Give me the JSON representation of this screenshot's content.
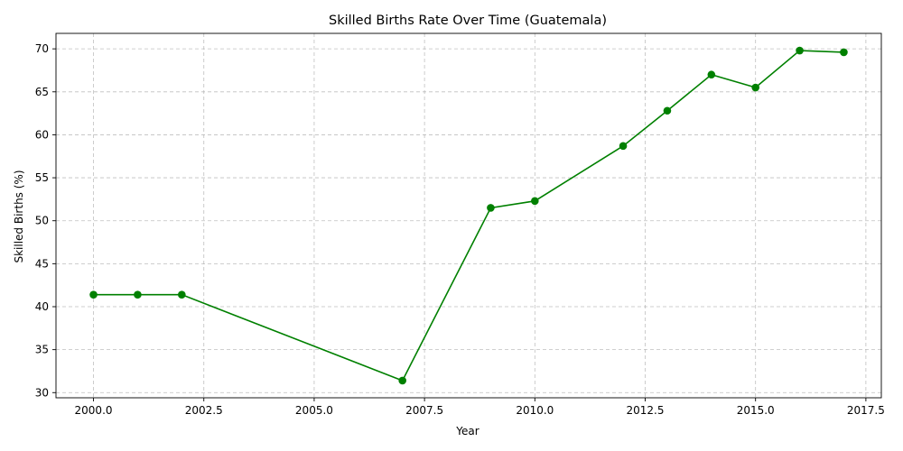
{
  "chart_data": {
    "type": "line",
    "title": "Skilled Births Rate Over Time (Guatemala)",
    "xlabel": "Year",
    "ylabel": "Skilled Births (%)",
    "xlim": [
      1999.15,
      2017.85
    ],
    "ylim": [
      29.4,
      71.8
    ],
    "xticks": [
      2000.0,
      2002.5,
      2005.0,
      2007.5,
      2010.0,
      2012.5,
      2015.0,
      2017.5
    ],
    "xtick_labels": [
      "2000.0",
      "2002.5",
      "2005.0",
      "2007.5",
      "2010.0",
      "2012.5",
      "2015.0",
      "2017.5"
    ],
    "yticks": [
      30,
      35,
      40,
      45,
      50,
      55,
      60,
      65,
      70
    ],
    "ytick_labels": [
      "30",
      "35",
      "40",
      "45",
      "50",
      "55",
      "60",
      "65",
      "70"
    ],
    "grid": true,
    "color": "#008000",
    "marker": "circle",
    "series": [
      {
        "x": [
          2000,
          2001,
          2002,
          2007,
          2009,
          2010,
          2012,
          2013,
          2014,
          2015,
          2016,
          2017
        ],
        "values": [
          41.4,
          41.4,
          41.4,
          31.4,
          51.5,
          52.3,
          58.7,
          62.8,
          67.0,
          65.5,
          69.8,
          69.6
        ]
      }
    ]
  }
}
